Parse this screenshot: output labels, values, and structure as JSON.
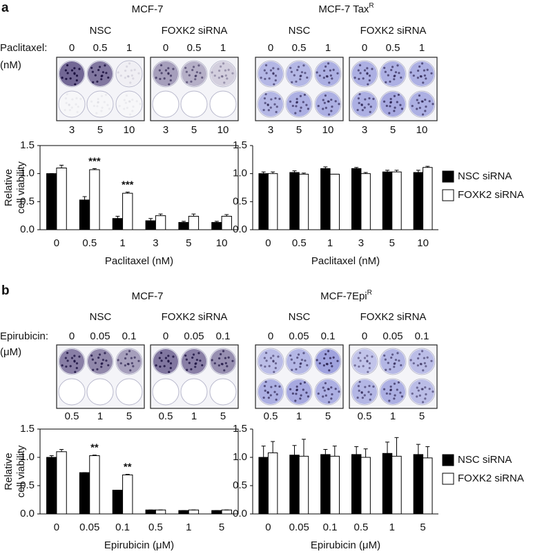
{
  "panels": [
    {
      "letter": "a",
      "drug": "Paclitaxel:",
      "unit": "(nM)",
      "cell_lines": [
        {
          "title": "MCF-7",
          "plates": [
            {
              "condition": "NSC",
              "top_doses": [
                "0",
                "0.5",
                "1"
              ],
              "bottom_doses": [
                "3",
                "5",
                "10"
              ]
            },
            {
              "condition": "FOXK2 siRNA",
              "top_doses": [
                "0",
                "0.5",
                "1"
              ],
              "bottom_doses": [
                "3",
                "5",
                "10"
              ]
            }
          ]
        },
        {
          "title": "MCF-7 Tax",
          "superscript": "R",
          "plates": [
            {
              "condition": "NSC",
              "top_doses": [
                "0",
                "0.5",
                "1"
              ],
              "bottom_doses": [
                "3",
                "5",
                "10"
              ]
            },
            {
              "condition": "FOXK2 siRNA",
              "top_doses": [
                "0",
                "0.5",
                "1"
              ],
              "bottom_doses": [
                "3",
                "5",
                "10"
              ]
            }
          ]
        }
      ]
    },
    {
      "letter": "b",
      "drug": "Epirubicin:",
      "unit": "(μM)",
      "cell_lines": [
        {
          "title": "MCF-7",
          "plates": [
            {
              "condition": "NSC",
              "top_doses": [
                "0",
                "0.05",
                "0.1"
              ],
              "bottom_doses": [
                "0.5",
                "1",
                "5"
              ]
            },
            {
              "condition": "FOXK2 siRNA",
              "top_doses": [
                "0",
                "0.05",
                "0.1"
              ],
              "bottom_doses": [
                "0.5",
                "1",
                "5"
              ]
            }
          ]
        },
        {
          "title": "MCF-7Epi",
          "superscript": "R",
          "plates": [
            {
              "condition": "NSC",
              "top_doses": [
                "0",
                "0.05",
                "0.1"
              ],
              "bottom_doses": [
                "0.5",
                "1",
                "5"
              ]
            },
            {
              "condition": "FOXK2 siRNA",
              "top_doses": [
                "0",
                "0.05",
                "0.1"
              ],
              "bottom_doses": [
                "0.5",
                "1",
                "5"
              ]
            }
          ]
        }
      ]
    }
  ],
  "chart_data": [
    {
      "type": "bar",
      "x_label": "Paclitaxel (nM)",
      "y_label": [
        "Relative",
        "cell viability"
      ],
      "frame": true,
      "categories": [
        "0",
        "0.5",
        "1",
        "3",
        "5",
        "10"
      ],
      "series": [
        {
          "name": "NSC siRNA",
          "color": "#000000",
          "values": [
            1.0,
            0.53,
            0.2,
            0.16,
            0.13,
            0.13
          ],
          "errors": [
            0.0,
            0.06,
            0.04,
            0.04,
            0.02,
            0.02
          ]
        },
        {
          "name": "FOXK2 siRNA",
          "color": "#ffffff",
          "values": [
            1.1,
            1.07,
            0.65,
            0.25,
            0.24,
            0.24
          ],
          "errors": [
            0.05,
            0.02,
            0.02,
            0.03,
            0.04,
            0.03
          ]
        }
      ],
      "annotations": [
        {
          "x": "0.5",
          "text": "***"
        },
        {
          "x": "1",
          "text": "***"
        }
      ],
      "ylim": [
        0,
        1.5
      ],
      "yticks": [
        {
          "value": 0,
          "label": "0.0"
        },
        0.5,
        {
          "value": 1,
          "label": "1.0"
        },
        1.5
      ]
    },
    {
      "type": "bar",
      "x_label": "Paclitaxel (nM)",
      "frame": false,
      "legend": "right",
      "categories": [
        "0",
        "0.5",
        "1",
        "3",
        "5",
        "10"
      ],
      "series": [
        {
          "name": "NSC siRNA",
          "color": "#000000",
          "values": [
            1.0,
            1.02,
            1.09,
            1.09,
            1.03,
            1.02
          ],
          "errors": [
            0.03,
            0.03,
            0.03,
            0.02,
            0.03,
            0.04
          ]
        },
        {
          "name": "FOXK2 siRNA",
          "color": "#ffffff",
          "values": [
            1.0,
            0.99,
            0.99,
            1.0,
            1.03,
            1.11
          ],
          "errors": [
            0.03,
            0.02,
            0.0,
            0.02,
            0.03,
            0.02
          ]
        }
      ],
      "ylim": [
        0,
        1.5
      ],
      "yticks": [
        {
          "value": 0,
          "label": "0.0"
        },
        0.5,
        {
          "value": 1,
          "label": "1.0"
        },
        1.5
      ]
    },
    {
      "type": "bar",
      "x_label": "Epirubicin (μM)",
      "y_label": [
        "Relative",
        "cell viability"
      ],
      "frame": true,
      "categories": [
        "0",
        "0.05",
        "0.1",
        "0.5",
        "1",
        "5"
      ],
      "series": [
        {
          "name": "NSC siRNA",
          "color": "#000000",
          "values": [
            1.0,
            0.73,
            0.42,
            0.07,
            0.06,
            0.06
          ],
          "errors": [
            0.03,
            0.0,
            0.0,
            0.0,
            0.0,
            0.0
          ]
        },
        {
          "name": "FOXK2 siRNA",
          "color": "#ffffff",
          "values": [
            1.1,
            1.03,
            0.69,
            0.07,
            0.07,
            0.07
          ],
          "errors": [
            0.04,
            0.01,
            0.01,
            0.0,
            0.0,
            0.0
          ]
        }
      ],
      "annotations": [
        {
          "x": "0.05",
          "text": "**"
        },
        {
          "x": "0.1",
          "text": "**"
        }
      ],
      "ylim": [
        0,
        1.5
      ],
      "yticks": [
        {
          "value": 0,
          "label": "0.0"
        },
        0.5,
        {
          "value": 1,
          "label": "1.0"
        },
        1.5
      ]
    },
    {
      "type": "bar",
      "x_label": "Epirubicin (μM)",
      "frame": false,
      "legend": "right",
      "categories": [
        "0",
        "0.05",
        "0.1",
        "0.5",
        "1",
        "5"
      ],
      "series": [
        {
          "name": "NSC siRNA",
          "color": "#000000",
          "values": [
            1.0,
            1.04,
            1.05,
            1.05,
            1.07,
            1.05
          ],
          "errors": [
            0.2,
            0.17,
            0.09,
            0.14,
            0.2,
            0.18
          ]
        },
        {
          "name": "FOXK2 siRNA",
          "color": "#ffffff",
          "values": [
            1.08,
            1.02,
            1.02,
            1.0,
            1.02,
            0.99
          ],
          "errors": [
            0.2,
            0.3,
            0.18,
            0.15,
            0.33,
            0.2
          ]
        }
      ],
      "ylim": [
        0,
        1.5
      ],
      "yticks": [
        {
          "value": 0,
          "label": "0.0"
        },
        0.5,
        {
          "value": 1,
          "label": "1.0"
        },
        1.5
      ]
    }
  ]
}
